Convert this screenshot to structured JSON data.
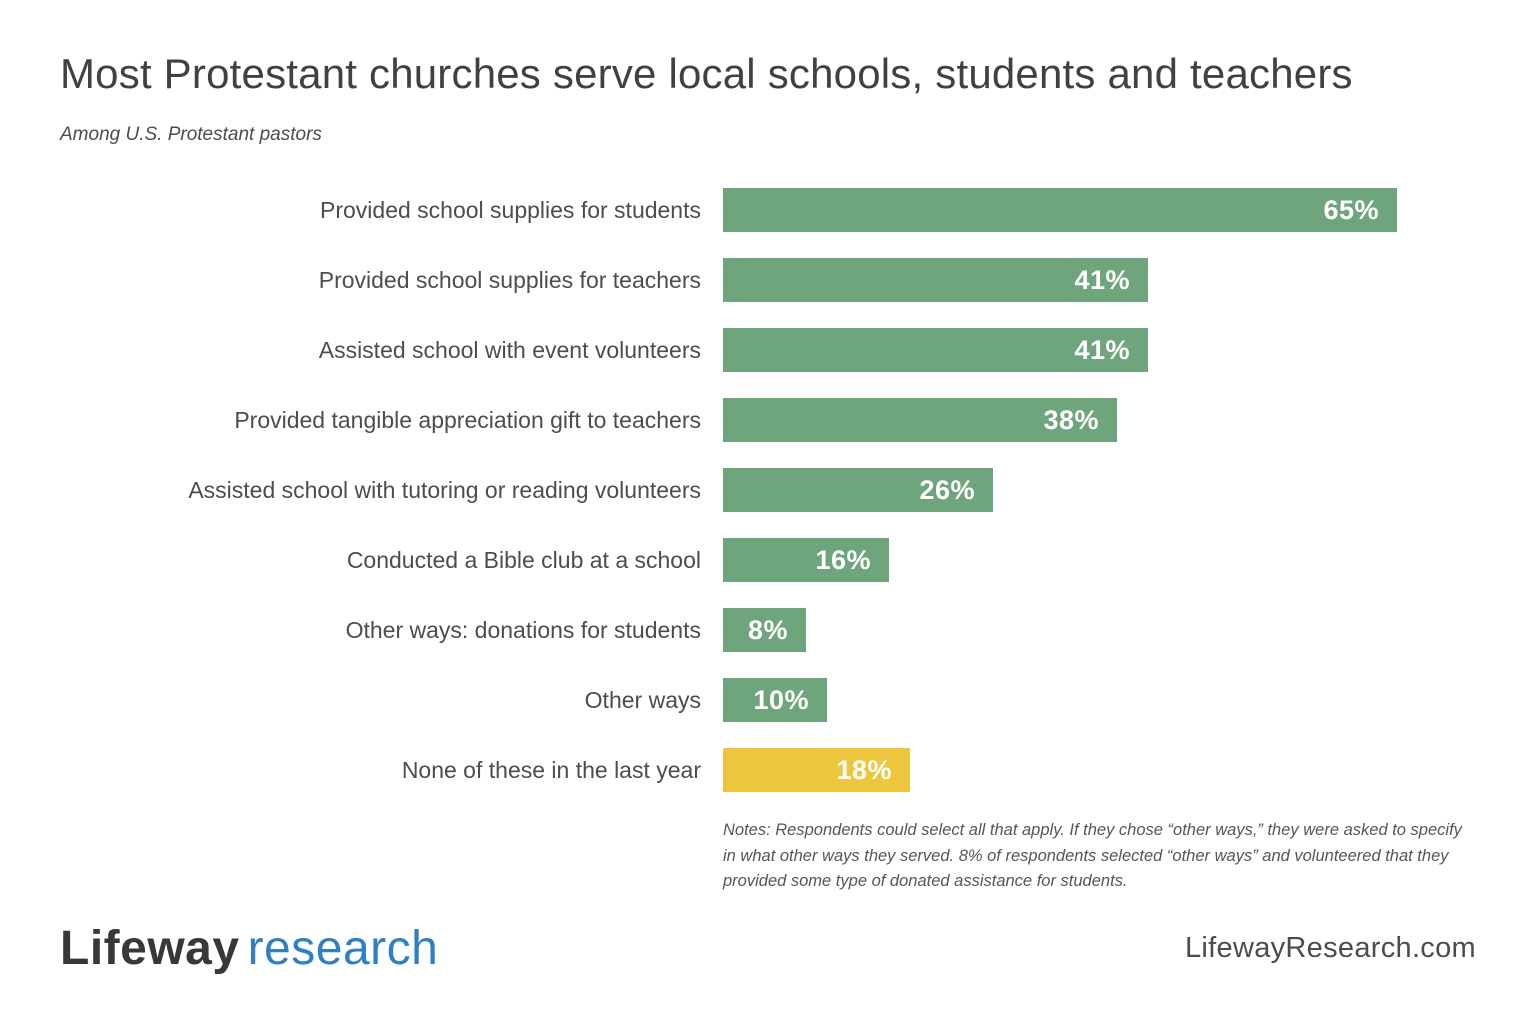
{
  "chart_data": {
    "type": "bar",
    "orientation": "horizontal",
    "title": "Most Protestant churches serve local schools, students and teachers",
    "subtitle": "Among U.S. Protestant pastors",
    "categories": [
      "Provided school supplies for students",
      "Provided school supplies for teachers",
      "Assisted school with event volunteers",
      "Provided tangible appreciation gift to teachers",
      "Assisted school with tutoring or reading volunteers",
      "Conducted a Bible club at a school",
      "Other ways: donations for students",
      "Other ways",
      "None of these in the last year"
    ],
    "values": [
      65,
      41,
      41,
      38,
      26,
      16,
      8,
      10,
      18
    ],
    "value_labels": [
      "65%",
      "41%",
      "41%",
      "38%",
      "26%",
      "16%",
      "8%",
      "10%",
      "18%"
    ],
    "xlim": [
      0,
      65
    ],
    "grid": false,
    "legend": "none",
    "bar_color_default": "#6FA57C",
    "bar_color_highlight": "#EEC63E",
    "highlight_index": 8
  },
  "notes": "Notes: Respondents could select all that apply. If they chose “other ways,” they were asked to specify in what other ways they served. 8% of respondents selected “other ways” and volunteered that they provided some type of donated assistance for students.",
  "footer": {
    "logo_primary": "Lifeway",
    "logo_secondary": "research",
    "website": "LifewayResearch.com"
  },
  "colors": {
    "title_text": "#3F4143",
    "label_text": "#4B4D4E",
    "value_text": "#FFFFFF",
    "notes_text": "#54565A",
    "logo_primary": "#37383B",
    "logo_secondary": "#2E80C2",
    "background": "#FFFFFF"
  }
}
